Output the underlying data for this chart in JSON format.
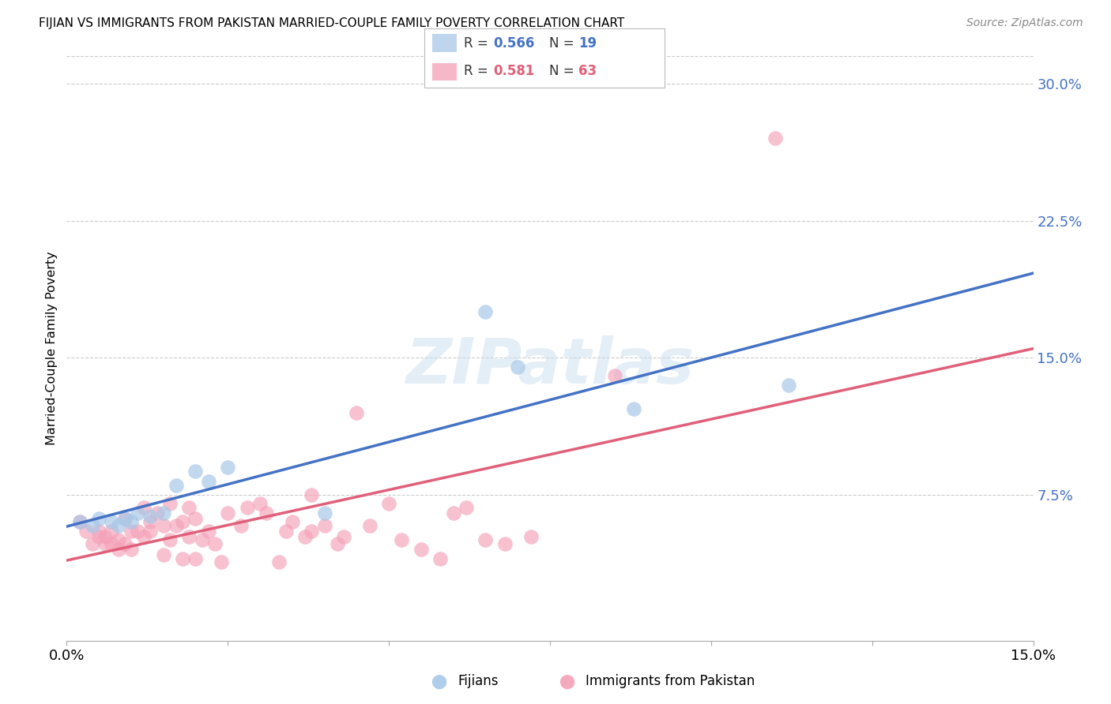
{
  "title": "FIJIAN VS IMMIGRANTS FROM PAKISTAN MARRIED-COUPLE FAMILY POVERTY CORRELATION CHART",
  "source": "Source: ZipAtlas.com",
  "ylabel": "Married-Couple Family Poverty",
  "xlim": [
    0.0,
    0.15
  ],
  "ylim": [
    -0.005,
    0.315
  ],
  "fijian_color": "#a8c8e8",
  "pakistan_color": "#f4a0b8",
  "fijian_line_color": "#4472c4",
  "pakistan_line_color": "#e0607a",
  "legend_r_fijian": "0.566",
  "legend_n_fijian": "19",
  "legend_r_pakistan": "0.581",
  "legend_n_pakistan": "63",
  "watermark_text": "ZIPatlas",
  "fijian_x": [
    0.002,
    0.004,
    0.005,
    0.007,
    0.008,
    0.009,
    0.01,
    0.011,
    0.013,
    0.015,
    0.017,
    0.02,
    0.022,
    0.025,
    0.04,
    0.065,
    0.07,
    0.088,
    0.112
  ],
  "fijian_y": [
    0.06,
    0.058,
    0.062,
    0.06,
    0.058,
    0.062,
    0.06,
    0.065,
    0.063,
    0.065,
    0.08,
    0.088,
    0.082,
    0.09,
    0.065,
    0.175,
    0.145,
    0.122,
    0.135
  ],
  "pakistan_x": [
    0.002,
    0.003,
    0.004,
    0.005,
    0.005,
    0.006,
    0.006,
    0.007,
    0.007,
    0.008,
    0.008,
    0.009,
    0.009,
    0.01,
    0.01,
    0.011,
    0.012,
    0.012,
    0.013,
    0.013,
    0.014,
    0.015,
    0.015,
    0.016,
    0.016,
    0.017,
    0.018,
    0.018,
    0.019,
    0.019,
    0.02,
    0.02,
    0.021,
    0.022,
    0.023,
    0.024,
    0.025,
    0.027,
    0.028,
    0.03,
    0.031,
    0.033,
    0.034,
    0.035,
    0.037,
    0.038,
    0.038,
    0.04,
    0.042,
    0.043,
    0.045,
    0.047,
    0.05,
    0.052,
    0.055,
    0.058,
    0.06,
    0.062,
    0.065,
    0.068,
    0.072,
    0.085,
    0.11
  ],
  "pakistan_y": [
    0.06,
    0.055,
    0.048,
    0.055,
    0.052,
    0.052,
    0.048,
    0.048,
    0.055,
    0.05,
    0.045,
    0.048,
    0.062,
    0.045,
    0.055,
    0.055,
    0.052,
    0.068,
    0.06,
    0.055,
    0.065,
    0.058,
    0.042,
    0.05,
    0.07,
    0.058,
    0.06,
    0.04,
    0.068,
    0.052,
    0.04,
    0.062,
    0.05,
    0.055,
    0.048,
    0.038,
    0.065,
    0.058,
    0.068,
    0.07,
    0.065,
    0.038,
    0.055,
    0.06,
    0.052,
    0.055,
    0.075,
    0.058,
    0.048,
    0.052,
    0.12,
    0.058,
    0.07,
    0.05,
    0.045,
    0.04,
    0.065,
    0.068,
    0.05,
    0.048,
    0.052,
    0.14,
    0.27
  ]
}
